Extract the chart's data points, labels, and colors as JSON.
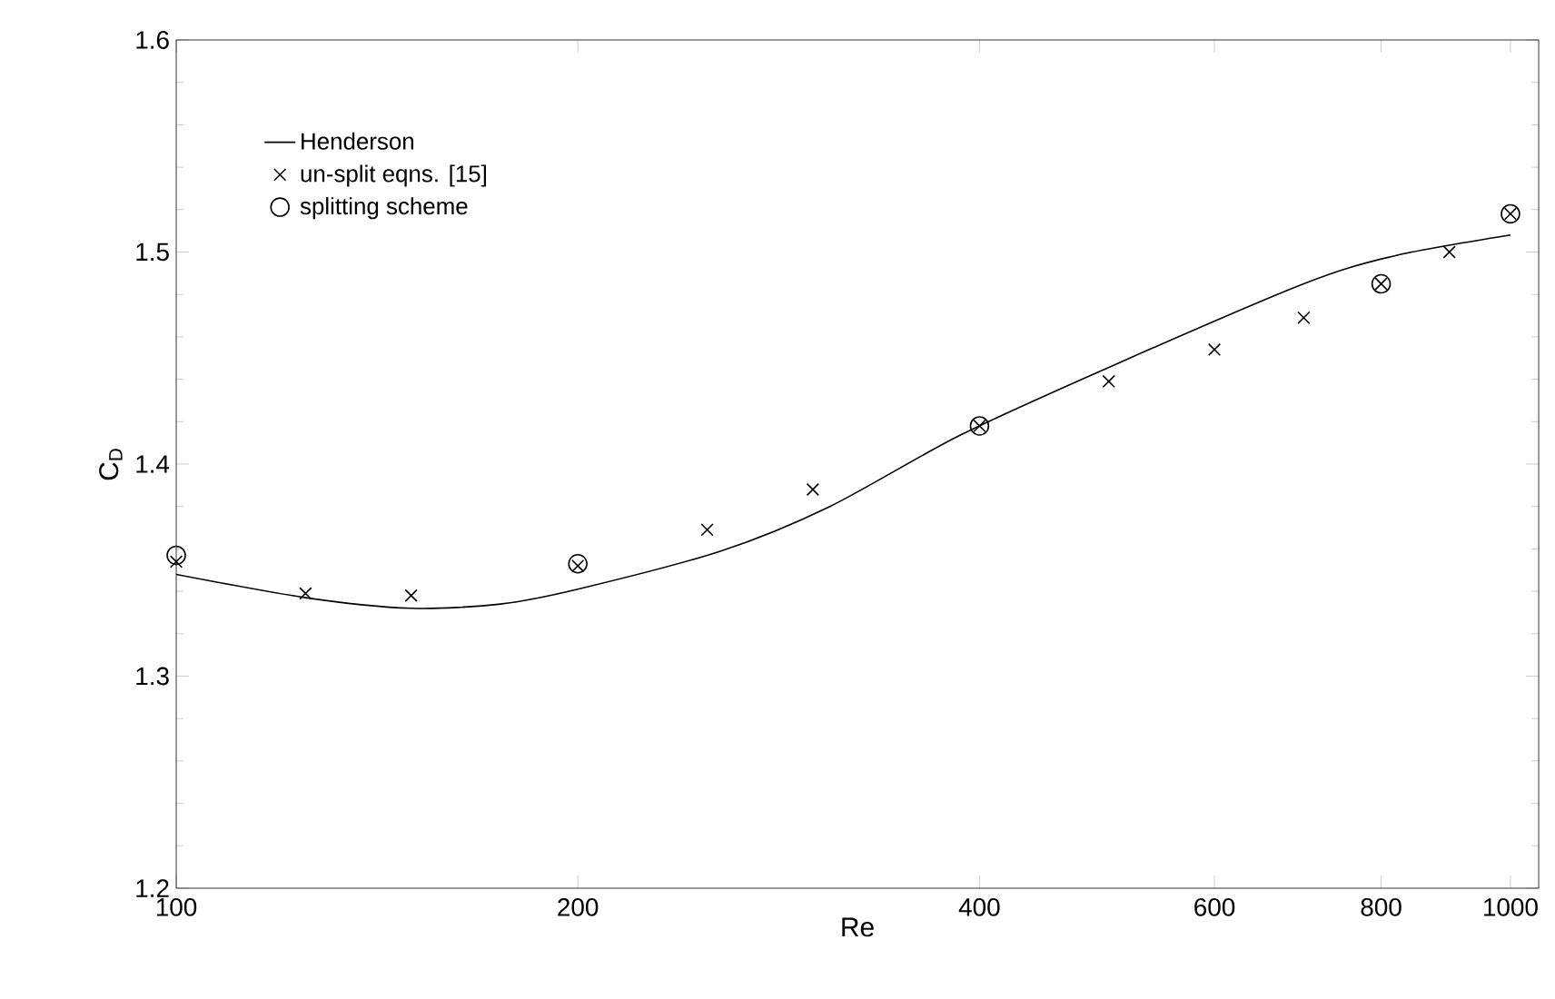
{
  "chart_data": {
    "type": "line",
    "xlabel": "Re",
    "ylabel": "C$_{D}$",
    "log": "x",
    "xlim": [
      100,
      1050
    ],
    "ylim": [
      1.2,
      1.6
    ],
    "xticks": [
      100,
      200,
      400,
      600,
      800,
      1000
    ],
    "yticks": [
      1.2,
      1.3,
      1.4,
      1.5,
      1.6
    ],
    "grid": false,
    "legend": "top left",
    "series": [
      {
        "name": "Henderson",
        "color": "#000000",
        "marker": "none",
        "line_style": "solid",
        "x": [
          100,
          125,
          150,
          175,
          200,
          256,
          309,
          388,
          510,
          700,
          816,
          1000
        ],
        "values": [
          1.348,
          1.337,
          1.332,
          1.334,
          1.341,
          1.359,
          1.38,
          1.414,
          1.448,
          1.485,
          1.498,
          1.508
        ]
      },
      {
        "name": "un-split eqns. [15]",
        "type": "scatter",
        "color": "#000000",
        "marker": "cross",
        "x": [
          100,
          125,
          150,
          200,
          250,
          300,
          400,
          500,
          600,
          700,
          800,
          900,
          1000
        ],
        "values": [
          1.354,
          1.339,
          1.338,
          1.352,
          1.369,
          1.388,
          1.418,
          1.439,
          1.454,
          1.469,
          1.485,
          1.5,
          1.518
        ]
      },
      {
        "name": "splitting scheme",
        "type": "scatter",
        "color": "#000000",
        "marker": "circle",
        "x": [
          100,
          200,
          400,
          800,
          1000
        ],
        "values": [
          1.357,
          1.353,
          1.418,
          1.485,
          1.518
        ]
      }
    ]
  }
}
